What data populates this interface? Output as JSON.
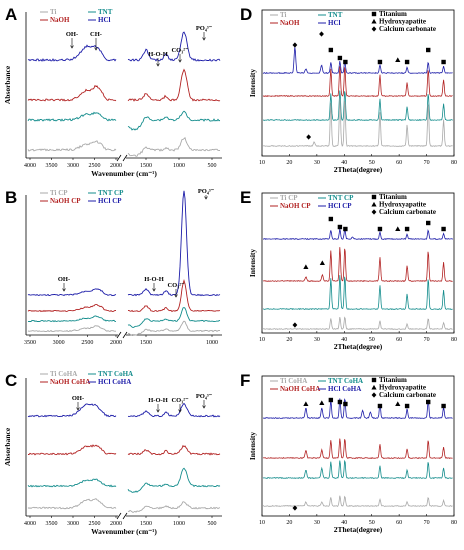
{
  "colors": {
    "Ti": "#a9a9a9",
    "NaOH": "#b22222",
    "TNT": "#138c8c",
    "HCl": "#1c1ca8"
  },
  "chart_data": [
    {
      "type": "line",
      "panel": "A",
      "letter": "A",
      "kind": "ftir",
      "xlabel": "Wavenumber (cm⁻¹)",
      "ylabel": "Absorbance",
      "xticks_left": [
        "4000",
        "3500",
        "3000",
        "2500",
        "2000"
      ],
      "xticks_right": [
        "1500",
        "1000",
        "500"
      ],
      "legend": [
        {
          "name": "Ti",
          "key": "Ti"
        },
        {
          "name": "TNT",
          "key": "TNT"
        },
        {
          "name": "NaOH",
          "key": "NaOH"
        },
        {
          "name": "HCl",
          "key": "HCl"
        }
      ],
      "annotations": [
        "OH-",
        "CH-",
        "H-O-H",
        "CO₃²⁻",
        "PO₄³⁻"
      ],
      "series": [
        {
          "key": "HCl"
        },
        {
          "key": "NaOH"
        },
        {
          "key": "TNT"
        },
        {
          "key": "Ti"
        }
      ]
    },
    {
      "type": "line",
      "panel": "B",
      "letter": "B",
      "kind": "ftir",
      "xlabel": "",
      "ylabel": "",
      "xticks_left": [
        "3500",
        "3000",
        "2500",
        "2000"
      ],
      "xticks_right": [
        "1500",
        "1000"
      ],
      "legend": [
        {
          "name": "Ti CP",
          "key": "Ti"
        },
        {
          "name": "TNT CP",
          "key": "TNT"
        },
        {
          "name": "NaOH CP",
          "key": "NaOH"
        },
        {
          "name": "HCl CP",
          "key": "HCl"
        }
      ],
      "annotations": [
        "OH-",
        "H-O-H",
        "CO₃²⁻",
        "PO₄³⁻"
      ],
      "series": [
        {
          "key": "HCl"
        },
        {
          "key": "NaOH"
        },
        {
          "key": "TNT"
        },
        {
          "key": "Ti"
        }
      ]
    },
    {
      "type": "line",
      "panel": "C",
      "letter": "C",
      "kind": "ftir",
      "xlabel": "Wavenumber (cm⁻¹)",
      "ylabel": "Absorbance",
      "xticks_left": [
        "4000",
        "3500",
        "3000",
        "2500",
        "2000"
      ],
      "xticks_right": [
        "1500",
        "1000",
        "500"
      ],
      "legend": [
        {
          "name": "Ti CoHA",
          "key": "Ti"
        },
        {
          "name": "TNT CoHA",
          "key": "TNT"
        },
        {
          "name": "NaOH CoHA",
          "key": "NaOH"
        },
        {
          "name": "HCl CoHA",
          "key": "HCl"
        }
      ],
      "annotations": [
        "OH-",
        "H-O-H",
        "CO₃²⁻",
        "PO₄³⁻"
      ],
      "series": [
        {
          "key": "HCl"
        },
        {
          "key": "NaOH"
        },
        {
          "key": "TNT"
        },
        {
          "key": "Ti"
        }
      ]
    },
    {
      "type": "line",
      "panel": "D",
      "letter": "D",
      "kind": "xrd",
      "xlabel": "2Theta(degree)",
      "ylabel": "Intensity",
      "xlim": [
        10,
        80
      ],
      "xticks": [
        "10",
        "20",
        "30",
        "40",
        "50",
        "60",
        "70",
        "80"
      ],
      "legend": [
        {
          "name": "Ti",
          "key": "Ti"
        },
        {
          "name": "TNT",
          "key": "TNT"
        },
        {
          "name": "NaOH",
          "key": "NaOH"
        },
        {
          "name": "HCl",
          "key": "HCl"
        }
      ],
      "marker_legend": [
        "Titanium",
        "Hydroxyapatite",
        "Calcium carbonate"
      ],
      "series": [
        {
          "key": "HCl"
        },
        {
          "key": "NaOH"
        },
        {
          "key": "TNT"
        },
        {
          "key": "Ti"
        }
      ]
    },
    {
      "type": "line",
      "panel": "E",
      "letter": "E",
      "kind": "xrd",
      "xlabel": "2Theta(degree)",
      "ylabel": "Intensity",
      "xlim": [
        10,
        80
      ],
      "xticks": [
        "10",
        "20",
        "30",
        "40",
        "50",
        "60",
        "70",
        "80"
      ],
      "legend": [
        {
          "name": "Ti CP",
          "key": "Ti"
        },
        {
          "name": "TNT CP",
          "key": "TNT"
        },
        {
          "name": "NaOH CP",
          "key": "NaOH"
        },
        {
          "name": "HCl CP",
          "key": "HCl"
        }
      ],
      "marker_legend": [
        "Titanium",
        "Hydroxyapatite",
        "Calcium carbonate"
      ],
      "series": [
        {
          "key": "HCl"
        },
        {
          "key": "NaOH"
        },
        {
          "key": "TNT"
        },
        {
          "key": "Ti"
        }
      ]
    },
    {
      "type": "line",
      "panel": "F",
      "letter": "F",
      "kind": "xrd",
      "xlabel": "2Theta(degree)",
      "ylabel": "Intensity",
      "xlim": [
        10,
        80
      ],
      "xticks": [
        "10",
        "20",
        "30",
        "40",
        "50",
        "60",
        "70",
        "80"
      ],
      "legend": [
        {
          "name": "Ti CoHA",
          "key": "Ti"
        },
        {
          "name": "TNT CoHA",
          "key": "TNT"
        },
        {
          "name": "NaOH CoHA",
          "key": "NaOH"
        },
        {
          "name": "HCl CoHA",
          "key": "HCl"
        }
      ],
      "marker_legend": [
        "Titanium",
        "Hydroxyapatite",
        "Calcium carbonate"
      ],
      "series": [
        {
          "key": "HCl"
        },
        {
          "key": "NaOH"
        },
        {
          "key": "TNT"
        },
        {
          "key": "Ti"
        }
      ]
    }
  ]
}
